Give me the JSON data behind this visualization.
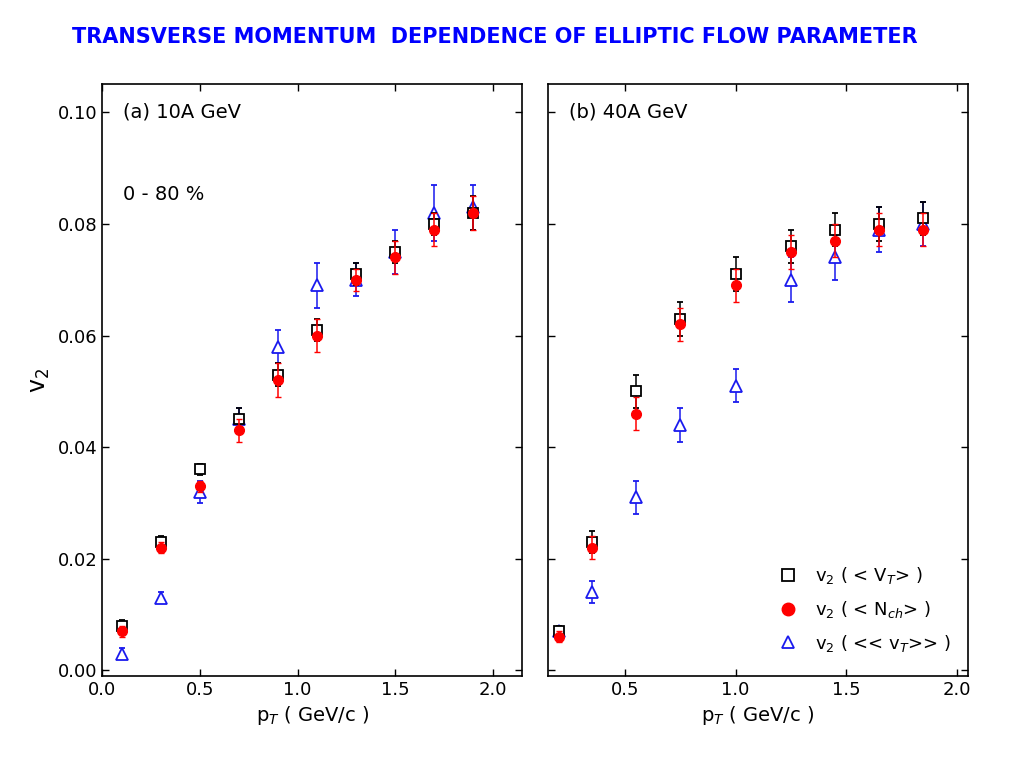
{
  "title": "TRANSVERSE MOMENTUM  DEPENDENCE OF ELLIPTIC FLOW PARAMETER",
  "title_color": "blue",
  "title_fontsize": 15,
  "panel_a_label": "(a) 10A GeV",
  "panel_b_label": "(b) 40A GeV",
  "centrality_label": "0 - 80 %",
  "xlabel": "p$_T$ ( GeV/c )",
  "ylabel": "v$_2$",
  "xlim_a": [
    0.0,
    2.15
  ],
  "xlim_b": [
    0.15,
    2.05
  ],
  "ylim": [
    -0.001,
    0.105
  ],
  "xticks_a": [
    0.0,
    0.5,
    1.0,
    1.5,
    2.0
  ],
  "xticks_b": [
    0.5,
    1.0,
    1.5,
    2.0
  ],
  "yticks": [
    0.0,
    0.02,
    0.04,
    0.06,
    0.08,
    0.1
  ],
  "panel_a": {
    "sq_x": [
      0.1,
      0.3,
      0.5,
      0.7,
      0.9,
      1.1,
      1.3,
      1.5,
      1.7,
      1.9
    ],
    "sq_y": [
      0.008,
      0.023,
      0.036,
      0.045,
      0.053,
      0.061,
      0.071,
      0.075,
      0.08,
      0.082
    ],
    "sq_yerr": [
      0.001,
      0.001,
      0.001,
      0.002,
      0.002,
      0.002,
      0.002,
      0.002,
      0.002,
      0.003
    ],
    "ci_x": [
      0.1,
      0.3,
      0.5,
      0.7,
      0.9,
      1.1,
      1.3,
      1.5,
      1.7,
      1.9
    ],
    "ci_y": [
      0.007,
      0.022,
      0.033,
      0.043,
      0.052,
      0.06,
      0.07,
      0.074,
      0.079,
      0.082
    ],
    "ci_yerr": [
      0.001,
      0.001,
      0.001,
      0.002,
      0.003,
      0.003,
      0.002,
      0.003,
      0.003,
      0.003
    ],
    "tr_x": [
      0.1,
      0.3,
      0.5,
      0.7,
      0.9,
      1.1,
      1.3,
      1.5,
      1.7,
      1.9
    ],
    "tr_y": [
      0.003,
      0.013,
      0.032,
      0.045,
      0.058,
      0.069,
      0.07,
      0.075,
      0.082,
      0.083
    ],
    "tr_yerr": [
      0.001,
      0.001,
      0.002,
      0.002,
      0.003,
      0.004,
      0.003,
      0.004,
      0.005,
      0.004
    ]
  },
  "panel_b": {
    "sq_x": [
      0.2,
      0.35,
      0.55,
      0.75,
      1.0,
      1.25,
      1.45,
      1.65,
      1.85
    ],
    "sq_y": [
      0.007,
      0.023,
      0.05,
      0.063,
      0.071,
      0.076,
      0.079,
      0.08,
      0.081
    ],
    "sq_yerr": [
      0.001,
      0.002,
      0.003,
      0.003,
      0.003,
      0.003,
      0.003,
      0.003,
      0.003
    ],
    "ci_x": [
      0.2,
      0.35,
      0.55,
      0.75,
      1.0,
      1.25,
      1.45,
      1.65,
      1.85
    ],
    "ci_y": [
      0.006,
      0.022,
      0.046,
      0.062,
      0.069,
      0.075,
      0.077,
      0.079,
      0.079
    ],
    "ci_yerr": [
      0.001,
      0.002,
      0.003,
      0.003,
      0.003,
      0.003,
      0.003,
      0.003,
      0.003
    ],
    "tr_x": [
      0.2,
      0.35,
      0.55,
      0.75,
      1.0,
      1.25,
      1.45,
      1.65,
      1.85
    ],
    "tr_y": [
      0.007,
      0.014,
      0.031,
      0.044,
      0.051,
      0.07,
      0.074,
      0.079,
      0.08
    ],
    "tr_yerr": [
      0.001,
      0.002,
      0.003,
      0.003,
      0.003,
      0.004,
      0.004,
      0.004,
      0.004
    ]
  },
  "sq_color": "black",
  "ci_color": "red",
  "tr_color": "#1a1aee",
  "legend_labels": [
    "v$_2$ ( < V$_T$> )",
    "v$_2$ ( < N$_{ch}$> )",
    "v$_2$ ( << v$_T$>> )"
  ]
}
